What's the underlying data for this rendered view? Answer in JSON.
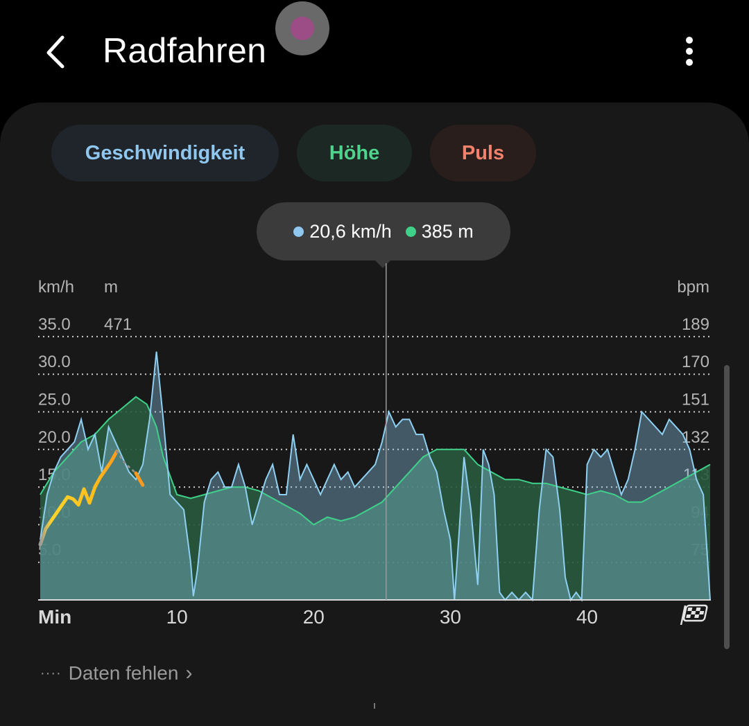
{
  "header": {
    "title": "Radfahren"
  },
  "tabs": [
    {
      "label": "Geschwindigkeit",
      "color": "#8fc7ef"
    },
    {
      "label": "Höhe",
      "color": "#4fd38d"
    },
    {
      "label": "Puls",
      "color": "#f2826c"
    }
  ],
  "tooltip": {
    "speed": {
      "text": "20,6 km/h",
      "color": "#8fc7ef"
    },
    "altitude": {
      "text": "385 m",
      "color": "#3fd18a"
    }
  },
  "footer": {
    "label": "Daten fehlen"
  },
  "chart_data": {
    "type": "area",
    "x_unit": "Min",
    "x_ticks": [
      10,
      20,
      30,
      40
    ],
    "xlim": [
      0,
      49
    ],
    "axes": {
      "speed": {
        "unit": "km/h",
        "ticks": [
          "35.0",
          "30.0",
          "25.0",
          "20.0",
          "15.0",
          "10.0",
          "5.0"
        ],
        "ylim": [
          0,
          40
        ]
      },
      "altitude": {
        "unit": "m",
        "ticks": [
          "471"
        ]
      },
      "heart_rate": {
        "unit": "bpm",
        "ticks": [
          "189",
          "170",
          "151",
          "132",
          "113",
          "94",
          "75"
        ]
      }
    },
    "cursor_x": 25.3,
    "series": [
      {
        "key": "altitude",
        "color": "#3fd18a",
        "x": [
          0,
          0.5,
          1,
          2,
          3,
          4,
          5,
          6,
          7,
          7.8,
          8.5,
          9,
          10,
          11,
          12,
          13,
          14,
          15,
          16,
          17,
          18,
          19,
          20,
          21,
          22,
          23,
          24,
          25,
          26,
          27,
          28,
          29,
          30,
          31,
          32,
          33,
          34,
          35,
          36,
          37,
          38,
          39,
          40,
          41,
          42,
          43,
          44,
          45,
          46,
          47,
          48,
          49
        ],
        "values": [
          14,
          15.5,
          17,
          19,
          21,
          22,
          24,
          25.5,
          27,
          26,
          23,
          19,
          14,
          13.5,
          14,
          14.5,
          15,
          15,
          14.5,
          13.5,
          12.5,
          11.5,
          10,
          11,
          10.5,
          11,
          12,
          13,
          15,
          17,
          19,
          20,
          20,
          20,
          18,
          17,
          16,
          16,
          15.5,
          15.5,
          15,
          14.5,
          14,
          14.5,
          14,
          13,
          13,
          14,
          15,
          16,
          17,
          18
        ]
      },
      {
        "key": "speed",
        "color": "#8fc7ef",
        "x": [
          0,
          0.5,
          1,
          1.5,
          2,
          2.5,
          3,
          3.5,
          4,
          4.5,
          5,
          5.5,
          6,
          6.5,
          7,
          7.5,
          8,
          8.5,
          9,
          9.5,
          10,
          10.5,
          11,
          11.2,
          11.5,
          12,
          12.5,
          13,
          13.5,
          14,
          14.5,
          15,
          15.5,
          16,
          16.5,
          17,
          17.5,
          18,
          18.5,
          19,
          19.5,
          20,
          20.5,
          21,
          21.5,
          22,
          22.5,
          23,
          23.5,
          24,
          24.5,
          25,
          25.5,
          26,
          26.5,
          27,
          27.5,
          28,
          28.5,
          29,
          29.5,
          30,
          30.3,
          30.6,
          31,
          31.5,
          32,
          32.4,
          32.8,
          33.2,
          33.6,
          34,
          34.5,
          35,
          35.5,
          36,
          36.5,
          37,
          37.5,
          38,
          38.4,
          38.8,
          39.2,
          39.6,
          40,
          40.5,
          41,
          41.5,
          42,
          42.5,
          43,
          43.5,
          44,
          44.5,
          45,
          45.5,
          46,
          46.5,
          47,
          47.5,
          48,
          48.5,
          49
        ],
        "values": [
          8,
          14,
          17,
          19,
          20,
          21,
          24,
          20,
          22,
          17,
          23,
          21,
          19,
          17,
          16,
          18,
          24,
          33,
          24,
          14,
          13,
          12,
          5,
          0.5,
          4,
          13,
          16,
          17,
          15,
          15,
          18,
          15,
          10,
          13,
          16,
          18,
          14,
          14,
          22,
          16,
          18,
          16,
          14,
          16,
          18,
          16,
          17,
          15,
          16,
          17,
          18,
          21,
          25,
          23,
          24,
          24,
          22,
          22,
          19,
          17,
          12,
          8,
          0,
          8,
          19,
          12,
          2,
          20,
          18,
          14,
          1,
          0,
          1,
          0,
          1,
          0,
          12,
          20,
          19,
          12,
          3,
          0,
          1,
          0,
          18,
          20,
          19,
          20,
          17,
          14,
          16,
          20,
          25,
          24,
          23,
          22,
          24,
          23,
          22,
          20,
          16,
          14,
          0
        ]
      },
      {
        "key": "heart_rate",
        "gradient": [
          "#9a9a9a",
          "#ffd42a",
          "#ff9a1c"
        ],
        "x": [
          0,
          0.4,
          0.8,
          1.2,
          1.6,
          2.0,
          2.4,
          2.8,
          3.2,
          3.6,
          4.0,
          4.4,
          4.8,
          5.2,
          5.6
        ],
        "values": [
          84,
          92,
          96,
          100,
          104,
          108,
          107,
          104,
          112,
          105,
          113,
          118,
          122,
          126,
          131
        ],
        "missing_x": [
          5.6,
          6.2,
          7.0
        ],
        "missing_values": [
          131,
          125,
          120
        ],
        "tail_x": [
          7.0,
          7.5
        ],
        "tail_values": [
          120,
          114
        ]
      }
    ]
  }
}
